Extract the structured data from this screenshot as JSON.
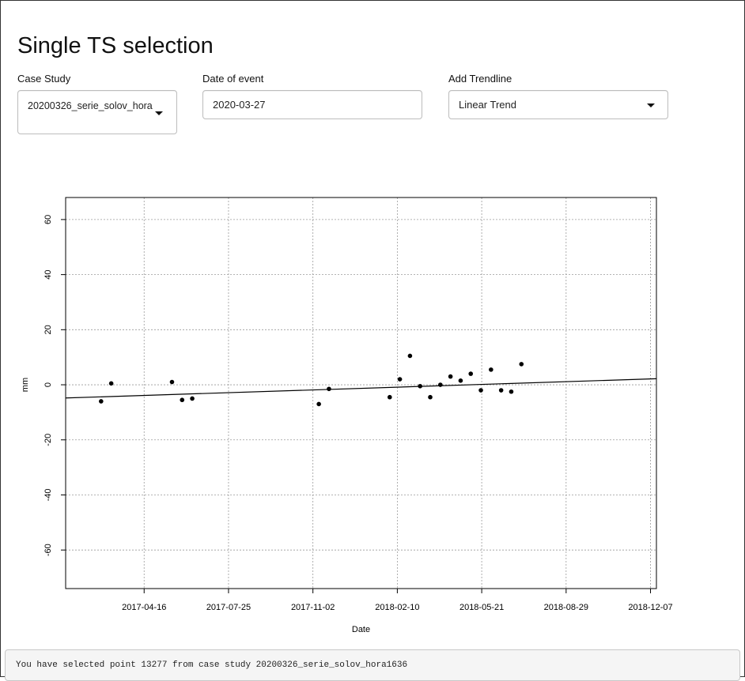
{
  "page": {
    "title": "Single TS selection"
  },
  "controls": {
    "case_study": {
      "label": "Case Study",
      "value": "20200326_serie_solov_hora"
    },
    "date_of_event": {
      "label": "Date of event",
      "value": "2020-03-27"
    },
    "trendline": {
      "label": "Add Trendline",
      "value": "Linear Trend"
    }
  },
  "chart_data": {
    "type": "scatter",
    "xlabel": "Date",
    "ylabel": "mm",
    "x_ticks": [
      "2017-04-16",
      "2017-07-25",
      "2017-11-02",
      "2018-02-10",
      "2018-05-21",
      "2018-08-29",
      "2018-12-07"
    ],
    "y_ticks": [
      -60,
      -40,
      -20,
      0,
      20,
      40,
      60
    ],
    "xlim": [
      "2017-01-13",
      "2018-12-14"
    ],
    "ylim": [
      -74,
      68
    ],
    "grid": true,
    "points": [
      {
        "x": "2017-02-24",
        "y": -6
      },
      {
        "x": "2017-03-08",
        "y": 0.5
      },
      {
        "x": "2017-05-19",
        "y": 1
      },
      {
        "x": "2017-05-31",
        "y": -5.5
      },
      {
        "x": "2017-06-12",
        "y": -5
      },
      {
        "x": "2017-11-09",
        "y": -7
      },
      {
        "x": "2017-11-21",
        "y": -1.5
      },
      {
        "x": "2018-02-01",
        "y": -4.5
      },
      {
        "x": "2018-02-13",
        "y": 2
      },
      {
        "x": "2018-02-25",
        "y": 10.5
      },
      {
        "x": "2018-03-09",
        "y": -0.5
      },
      {
        "x": "2018-03-21",
        "y": -4.5
      },
      {
        "x": "2018-04-02",
        "y": 0
      },
      {
        "x": "2018-04-14",
        "y": 3
      },
      {
        "x": "2018-04-26",
        "y": 1.5
      },
      {
        "x": "2018-05-08",
        "y": 4
      },
      {
        "x": "2018-05-20",
        "y": -2
      },
      {
        "x": "2018-06-01",
        "y": 5.5
      },
      {
        "x": "2018-06-13",
        "y": -2
      },
      {
        "x": "2018-06-25",
        "y": -2.5
      },
      {
        "x": "2018-07-07",
        "y": 7.5
      }
    ],
    "trend": {
      "type": "linear",
      "start": {
        "x": "2017-01-13",
        "y": -4.8
      },
      "end": {
        "x": "2018-12-14",
        "y": 2.2
      }
    }
  },
  "status_message": "You have selected point 13277 from case study 20200326_serie_solov_hora1636"
}
